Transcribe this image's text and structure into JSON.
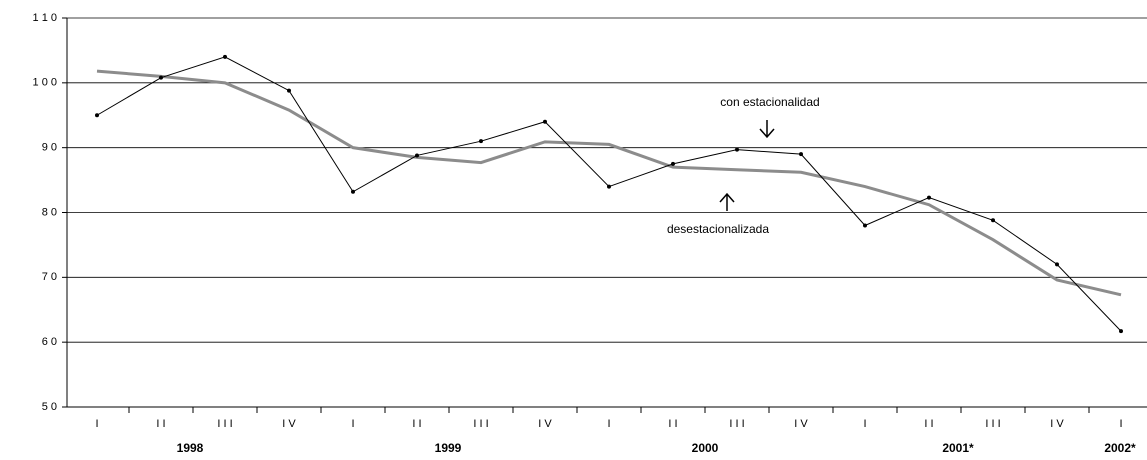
{
  "chart_data": {
    "type": "line",
    "categories": [
      "I",
      "I I",
      "I I I",
      "I V",
      "I",
      "I I",
      "I I I",
      "I V",
      "I",
      "I I",
      "I I I",
      "I V",
      "I",
      "I I",
      "I I I",
      "I V",
      "I"
    ],
    "year_labels": [
      "1998",
      "1999",
      "2000",
      "2001*",
      "2002*"
    ],
    "series": [
      {
        "name": "con estacionalidad",
        "color": "#000000",
        "markers": true,
        "values": [
          95,
          100.8,
          104,
          98.8,
          83.2,
          88.8,
          91,
          94,
          84,
          87.5,
          89.7,
          89,
          78,
          82.3,
          78.8,
          72,
          61.7
        ]
      },
      {
        "name": "desestacionalizada",
        "color": "#8c8c8c",
        "markers": false,
        "values": [
          101.8,
          101,
          100,
          95.8,
          90,
          88.5,
          87.7,
          90.9,
          90.5,
          87,
          86.6,
          86.2,
          84,
          81.2,
          75.8,
          69.6,
          67.3
        ]
      }
    ],
    "ylim": [
      50,
      110
    ],
    "yticks": [
      {
        "value": 50,
        "label": "5 0"
      },
      {
        "value": 60,
        "label": "6 0"
      },
      {
        "value": 70,
        "label": "7 0"
      },
      {
        "value": 80,
        "label": "8 0"
      },
      {
        "value": 90,
        "label": "9 0"
      },
      {
        "value": 100,
        "label": "1 0 0"
      },
      {
        "value": 110,
        "label": "1 1 0"
      }
    ],
    "grid": true
  }
}
